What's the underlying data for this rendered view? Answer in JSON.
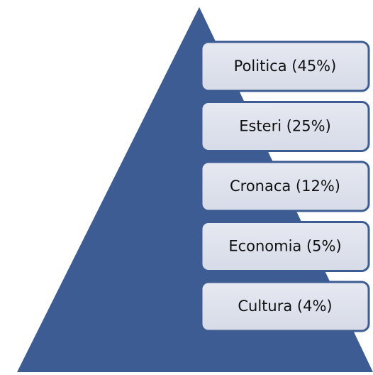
{
  "items": [
    "Politica (45%)",
    "Esteri (25%)",
    "Cronaca (12%)",
    "Economia (5%)",
    "Cultura (4%)"
  ]
}
